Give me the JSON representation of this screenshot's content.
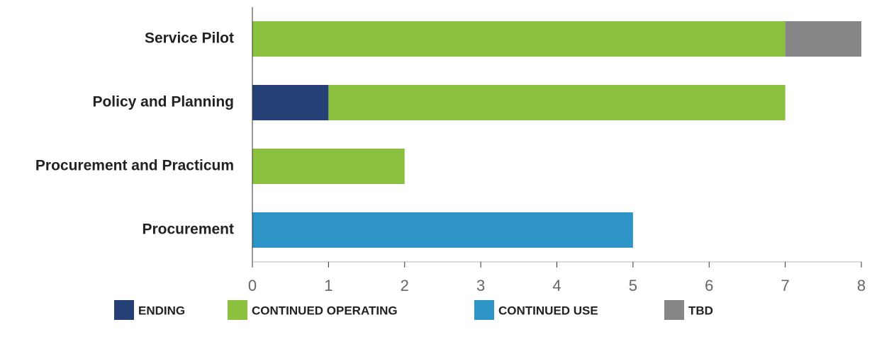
{
  "chart_data": {
    "type": "bar",
    "orientation": "horizontal",
    "stacked": true,
    "categories": [
      "Service Pilot",
      "Policy and Planning",
      "Procurement and Practicum",
      "Procurement"
    ],
    "series": [
      {
        "name": "ENDING",
        "color": "#253f77",
        "values": [
          0,
          1,
          0,
          0
        ]
      },
      {
        "name": "CONTINUED OPERATING",
        "color": "#8cc13f",
        "values": [
          7,
          6,
          2,
          0
        ]
      },
      {
        "name": "CONTINUED USE",
        "color": "#2e95c6",
        "values": [
          0,
          0,
          0,
          5
        ]
      },
      {
        "name": "TBD",
        "color": "#858688",
        "values": [
          1,
          0,
          0,
          0
        ]
      }
    ],
    "xlim": [
      0,
      8
    ],
    "xticks": [
      0,
      1,
      2,
      3,
      4,
      5,
      6,
      7,
      8
    ],
    "legend": "bottom"
  }
}
